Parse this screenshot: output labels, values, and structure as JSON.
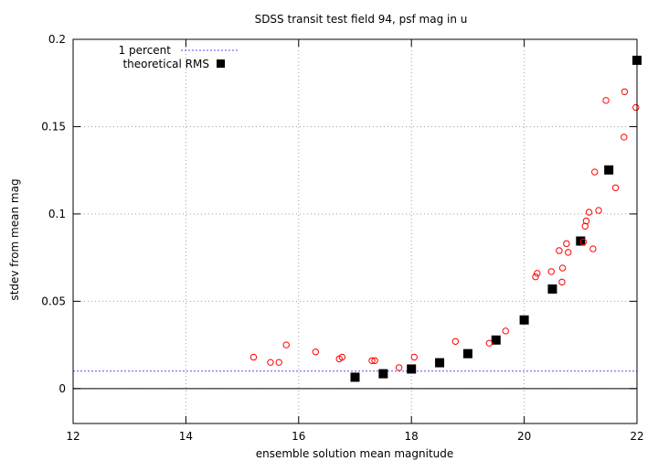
{
  "chart_data": {
    "type": "scatter",
    "title": "SDSS transit test field 94, psf mag in u",
    "xlabel": "ensemble solution mean magnitude",
    "ylabel": "stdev from mean mag",
    "xlim": [
      12,
      22
    ],
    "ylim": [
      -0.02,
      0.2
    ],
    "x_ticks": [
      12,
      14,
      16,
      18,
      20,
      22
    ],
    "x_tick_labels": [
      "12",
      "14",
      "16",
      "18",
      "20",
      "22"
    ],
    "y_ticks": [
      0,
      0.05,
      0.1,
      0.15,
      0.2
    ],
    "y_tick_labels": [
      "0",
      "0.05",
      "0.1",
      "0.15",
      "0.2"
    ],
    "grid": true,
    "legend_position": "top-left",
    "zero_line": true,
    "reference_line": {
      "name": "1 percent",
      "y": 0.01,
      "color": "#5050ff"
    },
    "series": [
      {
        "name": "theoretical RMS",
        "marker": "filled-square",
        "color": "#000000",
        "points": [
          [
            17.0,
            0.0065
          ],
          [
            17.5,
            0.0085
          ],
          [
            18.0,
            0.0112
          ],
          [
            18.5,
            0.0148
          ],
          [
            19.0,
            0.02
          ],
          [
            19.5,
            0.0278
          ],
          [
            20.0,
            0.0393
          ],
          [
            20.5,
            0.057
          ],
          [
            21.0,
            0.0845
          ],
          [
            21.5,
            0.1252
          ],
          [
            22.0,
            0.188
          ]
        ]
      },
      {
        "name": "",
        "marker": "open-circle",
        "color": "#ff0000",
        "points": [
          [
            15.2,
            0.018
          ],
          [
            15.5,
            0.015
          ],
          [
            15.65,
            0.015
          ],
          [
            15.78,
            0.025
          ],
          [
            16.3,
            0.021
          ],
          [
            16.72,
            0.017
          ],
          [
            16.77,
            0.018
          ],
          [
            17.3,
            0.016
          ],
          [
            17.35,
            0.016
          ],
          [
            17.78,
            0.012
          ],
          [
            18.05,
            0.018
          ],
          [
            18.78,
            0.027
          ],
          [
            19.38,
            0.026
          ],
          [
            19.67,
            0.033
          ],
          [
            20.2,
            0.064
          ],
          [
            20.23,
            0.066
          ],
          [
            20.48,
            0.067
          ],
          [
            20.62,
            0.079
          ],
          [
            20.67,
            0.061
          ],
          [
            20.68,
            0.069
          ],
          [
            20.75,
            0.083
          ],
          [
            20.78,
            0.078
          ],
          [
            21.05,
            0.084
          ],
          [
            21.08,
            0.093
          ],
          [
            21.1,
            0.096
          ],
          [
            21.15,
            0.101
          ],
          [
            21.22,
            0.08
          ],
          [
            21.25,
            0.124
          ],
          [
            21.32,
            0.102
          ],
          [
            21.45,
            0.165
          ],
          [
            21.62,
            0.115
          ],
          [
            21.77,
            0.144
          ],
          [
            21.78,
            0.17
          ],
          [
            21.98,
            0.161
          ]
        ]
      }
    ]
  }
}
